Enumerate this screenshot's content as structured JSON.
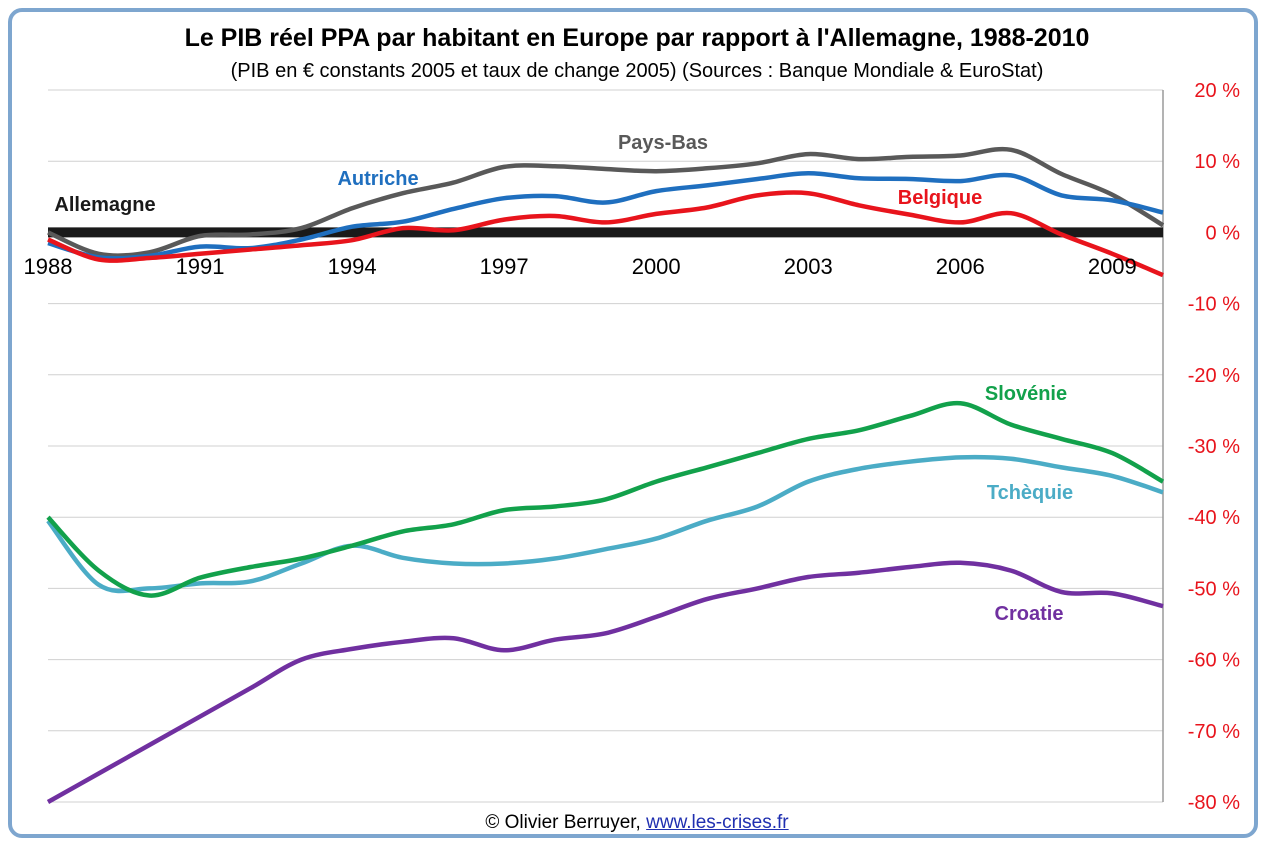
{
  "chart_data": {
    "type": "line",
    "title": "Le PIB réel PPA par habitant en Europe par rapport à l'Allemagne, 1988-2010",
    "subtitle": "(PIB en € constants 2005 et taux de change 2005) (Sources : Banque Mondiale & EuroStat)",
    "x": [
      1988,
      1989,
      1990,
      1991,
      1992,
      1993,
      1994,
      1995,
      1996,
      1997,
      1998,
      1999,
      2000,
      2001,
      2002,
      2003,
      2004,
      2005,
      2006,
      2007,
      2008,
      2009,
      2010
    ],
    "x_ticks": [
      "1988",
      "1991",
      "1994",
      "1997",
      "2000",
      "2003",
      "2006",
      "2009"
    ],
    "xlim": [
      1988,
      2010
    ],
    "ylim": [
      -80,
      20
    ],
    "y_ticks": [
      "20 %",
      "10 %",
      "0 %",
      "-10 %",
      "-20 %",
      "-30 %",
      "-40 %",
      "-50 %",
      "-60 %",
      "-70 %",
      "-80 %"
    ],
    "y_axis_position": "right",
    "grid": true,
    "series": [
      {
        "name": "Allemagne",
        "color": "#1a1a1a",
        "values": [
          0,
          0,
          0,
          0,
          0,
          0,
          0,
          0,
          0,
          0,
          0,
          0,
          0,
          0,
          0,
          0,
          0,
          0,
          0,
          0,
          0,
          0,
          0
        ]
      },
      {
        "name": "Pays-Bas",
        "color": "#595959",
        "values": [
          0.0,
          -3.0,
          -2.8,
          -0.5,
          -0.3,
          0.6,
          3.4,
          5.5,
          7.0,
          9.2,
          9.3,
          8.9,
          8.6,
          9.0,
          9.7,
          11.0,
          10.3,
          10.6,
          10.8,
          11.6,
          8.2,
          5.3,
          1.0
        ]
      },
      {
        "name": "Autriche",
        "color": "#1f6fbf",
        "values": [
          -1.5,
          -3.5,
          -3.3,
          -2.0,
          -2.2,
          -1.0,
          0.8,
          1.5,
          3.3,
          4.8,
          5.1,
          4.2,
          5.8,
          6.6,
          7.5,
          8.3,
          7.6,
          7.5,
          7.2,
          8.0,
          5.2,
          4.5,
          2.8
        ]
      },
      {
        "name": "Belgique",
        "color": "#e8141c",
        "values": [
          -1.0,
          -3.8,
          -3.6,
          -3.0,
          -2.4,
          -1.8,
          -1.1,
          0.6,
          0.3,
          1.8,
          2.3,
          1.4,
          2.6,
          3.5,
          5.2,
          5.5,
          3.8,
          2.5,
          1.4,
          2.7,
          -0.3,
          -3.0,
          -6.0
        ]
      },
      {
        "name": "Slovénie",
        "color": "#12a14b",
        "values": [
          -40.0,
          -47.5,
          -51.0,
          -48.5,
          -47.0,
          -45.8,
          -44.0,
          -42.0,
          -41.0,
          -39.0,
          -38.5,
          -37.5,
          -35.0,
          -33.0,
          -31.0,
          -29.0,
          -27.8,
          -25.8,
          -24.0,
          -27.0,
          -29.0,
          -31.0,
          -35.0
        ]
      },
      {
        "name": "Tchèquie",
        "color": "#4bacc6",
        "values": [
          -40.5,
          -49.5,
          -50.0,
          -49.3,
          -49.0,
          -46.5,
          -44.0,
          -45.7,
          -46.5,
          -46.5,
          -45.8,
          -44.5,
          -43.0,
          -40.5,
          -38.5,
          -35.0,
          -33.2,
          -32.2,
          -31.6,
          -31.8,
          -33.0,
          -34.2,
          -36.5
        ]
      },
      {
        "name": "Croatie",
        "color": "#7030a0",
        "values": [
          -80.0,
          -76.0,
          -72.0,
          -68.0,
          -64.0,
          -60.0,
          -58.5,
          -57.5,
          -57.0,
          -58.7,
          -57.2,
          -56.3,
          -54.0,
          -51.5,
          -50.0,
          -48.4,
          -47.8,
          -47.0,
          -46.4,
          -47.5,
          -50.5,
          -50.7,
          -52.5
        ]
      }
    ]
  },
  "footer": {
    "copyright": "© Olivier Berruyer,",
    "link": "www.les-crises.fr"
  }
}
